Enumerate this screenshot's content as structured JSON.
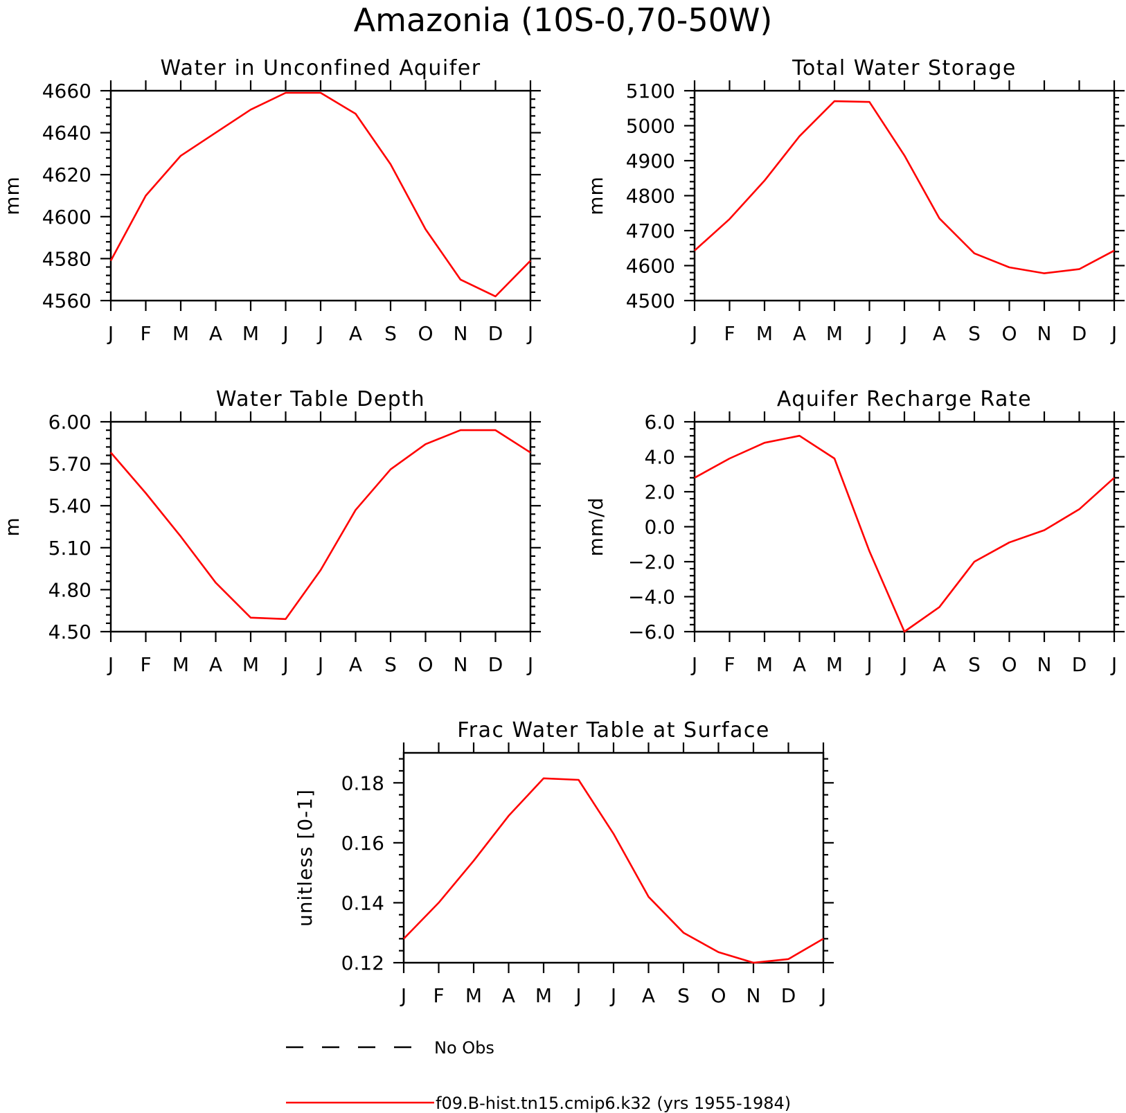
{
  "title": "Amazonia (10S-0,70-50W)",
  "colors": {
    "model": "#ff0000",
    "obs": "#000000"
  },
  "legend": {
    "obs_label": "No Obs",
    "model_label": "f09.B-hist.tn15.cmip6.k32 (yrs 1955-1984)"
  },
  "chart_data": [
    {
      "type": "line",
      "title": "Water in Unconfined Aquifer",
      "ylabel": "mm",
      "xlabel": "",
      "categories": [
        "J",
        "F",
        "M",
        "A",
        "M",
        "J",
        "J",
        "A",
        "S",
        "O",
        "N",
        "D",
        "J"
      ],
      "ylim": [
        4560,
        4660
      ],
      "yticks": [
        4560,
        4580,
        4600,
        4620,
        4640,
        4660
      ],
      "ytick_labels": [
        "4560",
        "4580",
        "4600",
        "4620",
        "4640",
        "4660"
      ],
      "series": [
        {
          "name": "f09.B-hist.tn15.cmip6.k32 (yrs 1955-1984)",
          "values": [
            4579,
            4610,
            4629,
            4640,
            4651,
            4659,
            4659,
            4649,
            4625,
            4594,
            4570,
            4562,
            4579
          ]
        }
      ]
    },
    {
      "type": "line",
      "title": "Total Water Storage",
      "ylabel": "mm",
      "xlabel": "",
      "categories": [
        "J",
        "F",
        "M",
        "A",
        "M",
        "J",
        "J",
        "A",
        "S",
        "O",
        "N",
        "D",
        "J"
      ],
      "ylim": [
        4500,
        5100
      ],
      "yticks": [
        4500,
        4600,
        4700,
        4800,
        4900,
        5000,
        5100
      ],
      "ytick_labels": [
        "4500",
        "4600",
        "4700",
        "4800",
        "4900",
        "5000",
        "5100"
      ],
      "series": [
        {
          "name": "f09.B-hist.tn15.cmip6.k32 (yrs 1955-1984)",
          "values": [
            4643,
            4733,
            4843,
            4970,
            5070,
            5068,
            4915,
            4735,
            4635,
            4595,
            4578,
            4590,
            4643
          ]
        }
      ]
    },
    {
      "type": "line",
      "title": "Water Table Depth",
      "ylabel": "m",
      "xlabel": "",
      "categories": [
        "J",
        "F",
        "M",
        "A",
        "M",
        "J",
        "J",
        "A",
        "S",
        "O",
        "N",
        "D",
        "J"
      ],
      "ylim": [
        4.5,
        6.0
      ],
      "yticks": [
        4.5,
        4.8,
        5.1,
        5.4,
        5.7,
        6.0
      ],
      "ytick_labels": [
        "4.50",
        "4.80",
        "5.10",
        "5.40",
        "5.70",
        "6.00"
      ],
      "series": [
        {
          "name": "f09.B-hist.tn15.cmip6.k32 (yrs 1955-1984)",
          "values": [
            5.78,
            5.49,
            5.18,
            4.85,
            4.6,
            4.59,
            4.94,
            5.37,
            5.66,
            5.84,
            5.94,
            5.94,
            5.78
          ]
        }
      ]
    },
    {
      "type": "line",
      "title": "Aquifer Recharge Rate",
      "ylabel": "mm/d",
      "xlabel": "",
      "categories": [
        "J",
        "F",
        "M",
        "A",
        "M",
        "J",
        "J",
        "A",
        "S",
        "O",
        "N",
        "D",
        "J"
      ],
      "ylim": [
        -6.0,
        6.0
      ],
      "yticks": [
        -6,
        -4,
        -2,
        0,
        2,
        4,
        6
      ],
      "ytick_labels": [
        "−6.0",
        "−4.0",
        "−2.0",
        "0.0",
        "2.0",
        "4.0",
        "6.0"
      ],
      "series": [
        {
          "name": "f09.B-hist.tn15.cmip6.k32 (yrs 1955-1984)",
          "values": [
            2.8,
            3.9,
            4.8,
            5.2,
            3.9,
            -1.4,
            -6.0,
            -4.6,
            -2.0,
            -0.9,
            -0.2,
            1.0,
            2.8
          ]
        }
      ]
    },
    {
      "type": "line",
      "title": "Frac Water Table at Surface",
      "ylabel": "unitless [0-1]",
      "xlabel": "",
      "categories": [
        "J",
        "F",
        "M",
        "A",
        "M",
        "J",
        "J",
        "A",
        "S",
        "O",
        "N",
        "D",
        "J"
      ],
      "ylim": [
        0.12,
        0.19
      ],
      "yticks": [
        0.12,
        0.14,
        0.16,
        0.18
      ],
      "ytick_labels": [
        "0.12",
        "0.14",
        "0.16",
        "0.18"
      ],
      "series": [
        {
          "name": "f09.B-hist.tn15.cmip6.k32 (yrs 1955-1984)",
          "values": [
            0.128,
            0.14,
            0.154,
            0.169,
            0.1815,
            0.181,
            0.163,
            0.142,
            0.13,
            0.1235,
            0.12,
            0.1212,
            0.128
          ]
        }
      ]
    }
  ]
}
